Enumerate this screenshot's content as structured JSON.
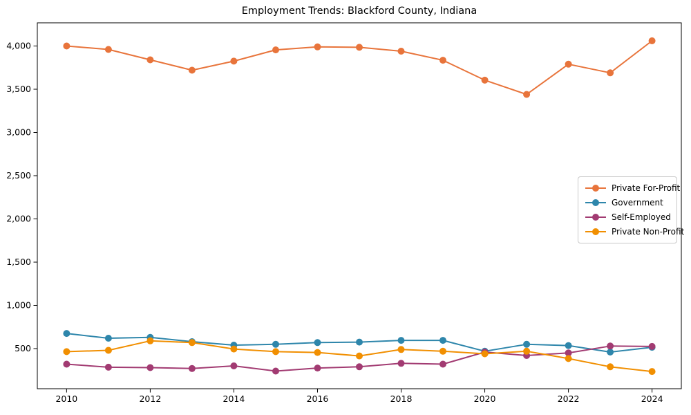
{
  "chart_data": {
    "type": "line",
    "title": "Employment Trends: Blackford County, Indiana",
    "xlabel": "",
    "ylabel": "",
    "x": [
      2010,
      2011,
      2012,
      2013,
      2014,
      2015,
      2016,
      2017,
      2018,
      2019,
      2020,
      2021,
      2022,
      2023,
      2024
    ],
    "series": [
      {
        "name": "Private For-Profit",
        "color": "#e8743b",
        "values": [
          4000,
          3960,
          3840,
          3720,
          3825,
          3955,
          3990,
          3985,
          3940,
          3835,
          3605,
          3440,
          3790,
          3690,
          4060
        ]
      },
      {
        "name": "Government",
        "color": "#2e86ab",
        "values": [
          675,
          620,
          630,
          580,
          540,
          550,
          570,
          575,
          595,
          595,
          470,
          550,
          535,
          460,
          515
        ]
      },
      {
        "name": "Self-Employed",
        "color": "#a23b72",
        "values": [
          320,
          285,
          280,
          270,
          300,
          240,
          275,
          290,
          330,
          320,
          460,
          420,
          450,
          530,
          525
        ]
      },
      {
        "name": "Private Non-Profit",
        "color": "#f18f01",
        "values": [
          465,
          480,
          590,
          570,
          495,
          465,
          455,
          415,
          490,
          470,
          440,
          470,
          385,
          290,
          235
        ]
      }
    ],
    "x_ticks": [
      2010,
      2012,
      2014,
      2016,
      2018,
      2020,
      2022,
      2024
    ],
    "x_tick_labels": [
      "2010",
      "2012",
      "2014",
      "2016",
      "2018",
      "2020",
      "2022",
      "2024"
    ],
    "y_ticks": [
      500,
      1000,
      1500,
      2000,
      2500,
      3000,
      3500,
      4000
    ],
    "y_tick_labels": [
      "500",
      "1,000",
      "1,500",
      "2,000",
      "2,500",
      "3,000",
      "3,500",
      "4,000"
    ],
    "xlim": [
      2009.3,
      2024.7
    ],
    "ylim": [
      36,
      4268
    ],
    "grid": false,
    "legend_position": "center right",
    "axis_color": "#000000",
    "tick_label_color": "#000000",
    "background_color": "#ffffff",
    "marker": "o",
    "marker_radius": 5,
    "line_width": 2
  }
}
